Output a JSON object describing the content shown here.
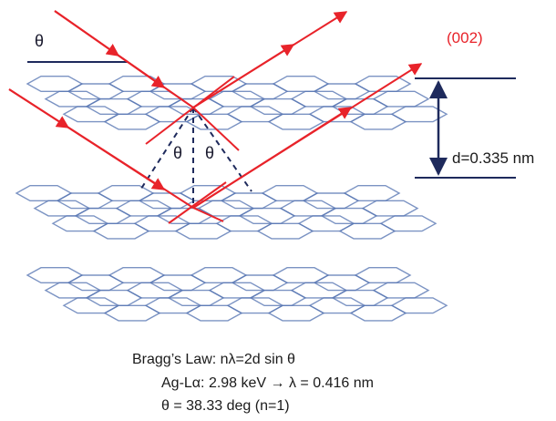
{
  "labels": {
    "theta_incident": "θ",
    "theta_left": "θ",
    "theta_right": "θ",
    "plane_index": "(002)",
    "spacing": "d=0.335 nm"
  },
  "equations": {
    "line1": "Bragg’s Law: nλ=2d sin θ",
    "line2": "Ag-Lα: 2.98 keV → λ = 0.416 nm",
    "line3": "θ = 38.33 deg (n=1)"
  },
  "colors": {
    "ray": "#e8232a",
    "lattice": "#5a78b4",
    "annotation": "#1e2a5c",
    "plane_index": "#e8232a"
  },
  "icons": {
    "ray_arrow": "arrowhead-icon",
    "spacing_arrow": "double-headed-arrow-icon"
  }
}
